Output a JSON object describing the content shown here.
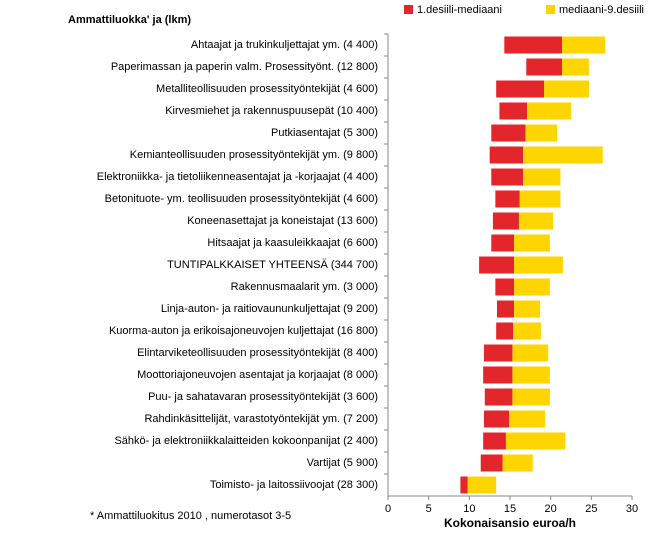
{
  "chart_data": {
    "type": "floating-bar",
    "title": "Ammattiluokka' ja (lkm)",
    "x_label": "Kokonaisansio euroa/h",
    "footnote": "* Ammattiluokitus 2010 , numerotasot 3-5",
    "categories": [
      "Ahtaajat ja trukinkuljettajat ym.  (4 400)",
      "Paperimassan ja paperin valm. Prosessityönt. (12 800)",
      "Metalliteollisuuden prosessityöntekijät  (4 600)",
      "Kirvesmiehet ja rakennuspuusepät  (10 400)",
      "Putkiasentajat  (5 300)",
      "Kemianteollisuuden prosessityöntekijät ym.  (9 800)",
      "Elektroniikka- ja tietoliikenneasentajat ja -korjaajat  (4 400)",
      "Betonituote- ym. teollisuuden prosessityöntekijät (4 600)",
      "Koneenasettajat ja koneistajat  (13 600)",
      "Hitsaajat ja kaasuleikkaajat  (6 600)",
      "TUNTIPALKKAISET YHTEENSÄ   (344 700)",
      "Rakennusmaalarit ym.  (3 000)",
      "Linja-auton- ja raitiovaununkuljettajat  (9 200)",
      "Kuorma-auton ja erikoisajoneuvojen kuljettajat  (16 800)",
      "Elintarviketeollisuuden prosessityöntekijät (8 400)",
      "Moottoriajoneuvojen asentajat ja korjaajat (8 000)",
      "Puu- ja sahatavaran prosessityöntekijät  (3 600)",
      "Rahdinkäsittelijät, varastotyöntekijät ym.  (7 200)",
      "Sähkö- ja elektroniikkalaitteiden kokoonpanijat  (2 400)",
      "Vartijat  (5 900)",
      "Toimisto- ja laitossiivoojat  (28 300)"
    ],
    "d1": [
      14.3,
      17.0,
      13.3,
      13.7,
      12.7,
      12.5,
      12.7,
      13.2,
      12.9,
      12.7,
      11.2,
      13.2,
      13.4,
      13.3,
      11.8,
      11.7,
      11.9,
      11.8,
      11.7,
      11.4,
      8.9
    ],
    "median": [
      21.4,
      21.4,
      19.2,
      17.1,
      16.9,
      16.6,
      16.6,
      16.2,
      16.1,
      15.5,
      15.5,
      15.5,
      15.5,
      15.4,
      15.3,
      15.3,
      15.3,
      14.9,
      14.5,
      14.1,
      9.8
    ],
    "d9": [
      26.7,
      24.7,
      24.7,
      22.5,
      20.8,
      26.4,
      21.2,
      21.2,
      20.3,
      19.9,
      21.5,
      19.9,
      18.7,
      18.8,
      19.7,
      19.9,
      19.9,
      19.3,
      21.8,
      17.8,
      13.3
    ],
    "series": [
      {
        "name": "1.desiili-mediaani",
        "color": "#e3262b"
      },
      {
        "name": "mediaani-9.desiili",
        "color": "#ffd500"
      }
    ],
    "xlim": [
      0,
      30
    ],
    "xticks": [
      0,
      5,
      10,
      15,
      20,
      25,
      30
    ]
  }
}
